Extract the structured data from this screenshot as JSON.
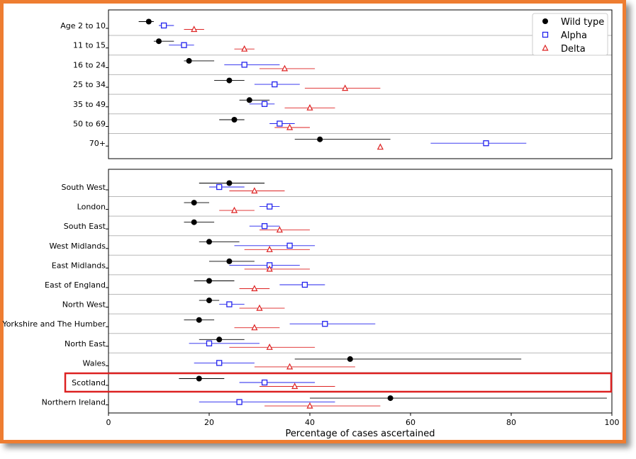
{
  "chart_data": {
    "type": "scatter",
    "xlabel": "Percentage of cases ascertained",
    "xlim": [
      0,
      100
    ],
    "xticks": [
      0,
      20,
      40,
      60,
      80,
      100
    ],
    "legend": {
      "placement": "top-right",
      "entries": [
        "Wild type",
        "Alpha",
        "Delta"
      ]
    },
    "highlight_row": "Scotland",
    "highlight_color": "#dd2222",
    "series_styles": [
      {
        "name": "Wild type",
        "marker": "circle",
        "color": "#000000"
      },
      {
        "name": "Alpha",
        "marker": "square",
        "color": "#2222ee"
      },
      {
        "name": "Delta",
        "marker": "triangle",
        "color": "#dd2222"
      }
    ],
    "panels": [
      {
        "categories": [
          "Age 2 to 10",
          "11 to 15",
          "16 to 24",
          "25 to 34",
          "35 to 49",
          "50 to 69",
          "70+"
        ],
        "series": [
          {
            "name": "Wild type",
            "values": [
              8,
              10,
              16,
              24,
              28,
              25,
              42
            ],
            "lower": [
              6,
              9,
              15,
              21,
              26,
              22,
              37
            ],
            "upper": [
              9,
              13,
              21,
              27,
              32,
              27,
              56
            ]
          },
          {
            "name": "Alpha",
            "values": [
              11,
              15,
              27,
              33,
              31,
              34,
              75
            ],
            "lower": [
              10,
              12,
              23,
              29,
              28,
              32,
              64
            ],
            "upper": [
              13,
              17,
              34,
              38,
              33,
              37,
              83
            ]
          },
          {
            "name": "Delta",
            "values": [
              17,
              27,
              35,
              47,
              40,
              36,
              54
            ],
            "lower": [
              15,
              25,
              30,
              39,
              35,
              33,
              null
            ],
            "upper": [
              19,
              29,
              41,
              54,
              45,
              40,
              null
            ]
          }
        ]
      },
      {
        "categories": [
          "South West",
          "London",
          "South East",
          "West Midlands",
          "East Midlands",
          "East of England",
          "North West",
          "Yorkshire and The Humber",
          "North East",
          "Wales",
          "Scotland",
          "Northern Ireland"
        ],
        "series": [
          {
            "name": "Wild type",
            "values": [
              24,
              17,
              17,
              20,
              24,
              20,
              20,
              18,
              22,
              48,
              18,
              56
            ],
            "lower": [
              18,
              15,
              15,
              18,
              20,
              17,
              18,
              15,
              18,
              37,
              14,
              40
            ],
            "upper": [
              31,
              20,
              21,
              26,
              29,
              25,
              22,
              21,
              27,
              82,
              23,
              99
            ]
          },
          {
            "name": "Alpha",
            "values": [
              22,
              32,
              31,
              36,
              32,
              39,
              24,
              43,
              20,
              22,
              31,
              26
            ],
            "lower": [
              20,
              30,
              28,
              25,
              24,
              34,
              22,
              36,
              16,
              17,
              26,
              18
            ],
            "upper": [
              27,
              34,
              34,
              41,
              38,
              43,
              27,
              53,
              30,
              29,
              41,
              45
            ]
          },
          {
            "name": "Delta",
            "values": [
              29,
              25,
              34,
              32,
              32,
              29,
              30,
              29,
              32,
              36,
              37,
              40
            ],
            "lower": [
              24,
              22,
              30,
              27,
              27,
              26,
              26,
              25,
              24,
              29,
              30,
              31
            ],
            "upper": [
              35,
              29,
              40,
              40,
              40,
              32,
              35,
              34,
              41,
              49,
              45,
              54
            ]
          }
        ]
      }
    ]
  }
}
